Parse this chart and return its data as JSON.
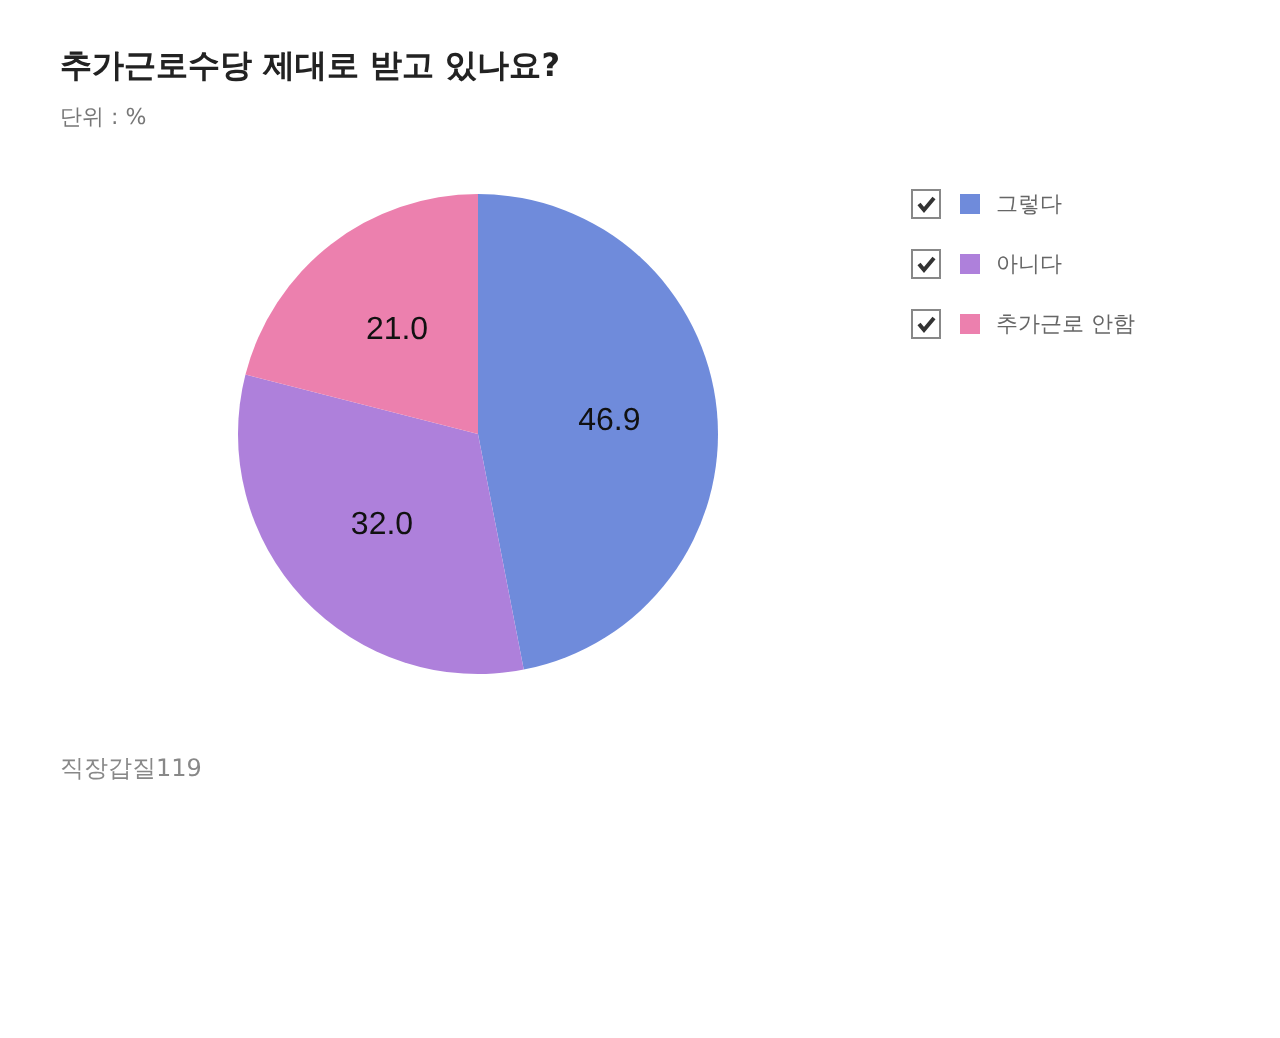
{
  "chart_data": {
    "type": "pie",
    "title": "추가근로수당 제대로 받고 있나요?",
    "subtitle": "단위 : %",
    "categories": [
      "그렇다",
      "아니다",
      "추가근로 안함"
    ],
    "values": [
      46.9,
      32.0,
      21.0
    ],
    "colors": [
      "#6f8bdb",
      "#ae80db",
      "#ec80ae"
    ],
    "value_labels": [
      "46.9",
      "32.0",
      "21.0"
    ],
    "legend": "right",
    "annotations": [
      "직장갑질119"
    ]
  }
}
